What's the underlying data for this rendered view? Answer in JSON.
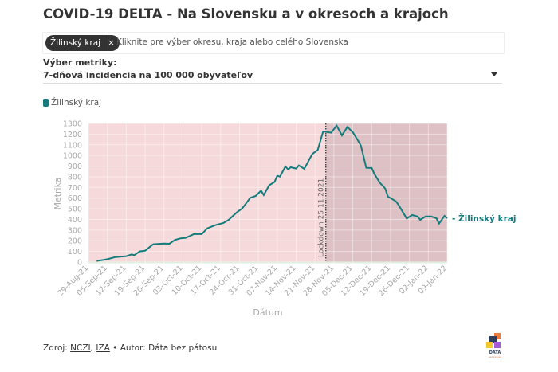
{
  "title": "COVID-19 DELTA - Na Slovensku a v okresoch a krajoch",
  "filter": {
    "chip": "Žilinský kraj",
    "chip_close": "×",
    "placeholder": "Kliknite pre výber okresu, kraja alebo celého Slovenska"
  },
  "metric": {
    "label": "Výber metriky:",
    "selected": "7-dňová incidencia na 100 000 obyvateľov"
  },
  "source": {
    "prefix": "Zdroj: ",
    "link1": "NCZI",
    "sep": ", ",
    "link2": "IZA",
    "author": " • Autor: Dáta bez pátosu"
  },
  "logo_text": "DÁTA bez pátosu",
  "chart_data": {
    "type": "line",
    "xlabel": "Dátum",
    "ylabel": "Metrika",
    "ylim": [
      0,
      1300
    ],
    "yticks": [
      0,
      100,
      200,
      300,
      400,
      500,
      600,
      700,
      800,
      900,
      1000,
      1100,
      1200,
      1300
    ],
    "xlim": [
      "2021-08-29",
      "2022-01-09"
    ],
    "xticks": [
      "29-Aug-21",
      "05-Sep-21",
      "12-Sep-21",
      "19-Sep-21",
      "26-Sep-21",
      "03-Oct-21",
      "10-Oct-21",
      "17-Oct-21",
      "24-Oct-21",
      "31-Oct-21",
      "07-Nov-21",
      "14-Nov-21",
      "21-Nov-21",
      "28-Nov-21",
      "05-Dec-21",
      "12-Dec-21",
      "19-Dec-21",
      "26-Dec-21",
      "02-Jan-22",
      "09-Jan-22"
    ],
    "grid": true,
    "legend": "top-left",
    "color": "#137b7b",
    "annotation": {
      "label": "Lockdown 25.11.2021",
      "date": "2021-11-25"
    },
    "series": [
      {
        "name": "Žilinský kraj",
        "end_label": "- Žilinský kraj",
        "x": [
          "2021-09-01",
          "2021-09-05",
          "2021-09-08",
          "2021-09-12",
          "2021-09-14",
          "2021-09-15",
          "2021-09-17",
          "2021-09-19",
          "2021-09-22",
          "2021-09-26",
          "2021-09-28",
          "2021-09-30",
          "2021-10-02",
          "2021-10-04",
          "2021-10-06",
          "2021-10-07",
          "2021-10-10",
          "2021-10-12",
          "2021-10-15",
          "2021-10-18",
          "2021-10-20",
          "2021-10-23",
          "2021-10-25",
          "2021-10-28",
          "2021-10-30",
          "2021-11-01",
          "2021-11-02",
          "2021-11-04",
          "2021-11-06",
          "2021-11-07",
          "2021-11-08",
          "2021-11-10",
          "2021-11-11",
          "2021-11-12",
          "2021-11-14",
          "2021-11-15",
          "2021-11-17",
          "2021-11-20",
          "2021-11-22",
          "2021-11-24",
          "2021-11-27",
          "2021-11-29",
          "2021-12-01",
          "2021-12-03",
          "2021-12-05",
          "2021-12-07",
          "2021-12-08",
          "2021-12-10",
          "2021-12-12",
          "2021-12-13",
          "2021-12-15",
          "2021-12-17",
          "2021-12-18",
          "2021-12-21",
          "2021-12-22",
          "2021-12-25",
          "2021-12-27",
          "2021-12-29",
          "2021-12-30",
          "2022-01-01",
          "2022-01-03",
          "2022-01-05",
          "2022-01-06",
          "2022-01-08",
          "2022-01-09"
        ],
        "y": [
          10,
          27,
          47,
          55,
          72,
          65,
          100,
          107,
          167,
          174,
          172,
          207,
          222,
          227,
          249,
          262,
          262,
          316,
          346,
          366,
          396,
          466,
          503,
          603,
          620,
          670,
          628,
          720,
          752,
          809,
          802,
          896,
          869,
          889,
          877,
          906,
          874,
          1014,
          1051,
          1225,
          1213,
          1280,
          1188,
          1268,
          1218,
          1138,
          1093,
          884,
          882,
          827,
          745,
          690,
          615,
          570,
          535,
          408,
          441,
          428,
          396,
          428,
          428,
          411,
          361,
          433,
          411
        ]
      }
    ]
  }
}
